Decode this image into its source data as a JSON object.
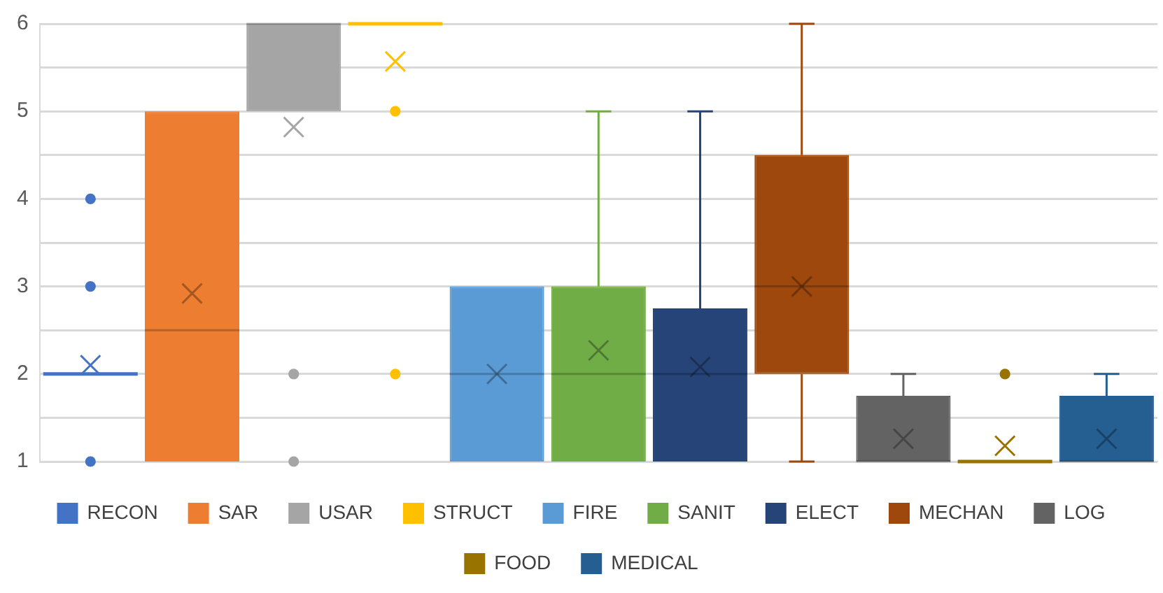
{
  "chart_data": {
    "type": "box",
    "categories": [
      null
    ],
    "ylim": [
      1,
      6
    ],
    "yticks": [
      1,
      {
        "value": 1.5,
        "label": null
      },
      2,
      {
        "value": 2.5,
        "label": null
      },
      3,
      {
        "value": 3.5,
        "label": null
      },
      4,
      {
        "value": 4.5,
        "label": null
      },
      5,
      {
        "value": 5.5,
        "label": null
      },
      6
    ],
    "grid": "y",
    "legend": "bottom",
    "tick_labels": "y",
    "series": [
      {
        "name": "RECON",
        "color": "#4472c4",
        "boxes": [
          {
            "low": 2,
            "q1": 2,
            "median": 2,
            "q3": 2,
            "high": 2,
            "mean": 2.1,
            "outliers": [
              1,
              3,
              4
            ]
          }
        ]
      },
      {
        "name": "SAR",
        "color": "#ed7d31",
        "boxes": [
          {
            "low": 1,
            "q1": 1,
            "median": 2.5,
            "q3": 5,
            "high": 5,
            "mean": 2.92
          }
        ]
      },
      {
        "name": "USAR",
        "color": "#a5a5a5",
        "boxes": [
          {
            "low": 5,
            "q1": 5,
            "median": 6,
            "q3": 6,
            "high": 6,
            "mean": 4.82,
            "outliers": [
              1,
              2
            ]
          }
        ]
      },
      {
        "name": "STRUCT",
        "color": "#ffc000",
        "boxes": [
          {
            "low": 6,
            "q1": 6,
            "median": 6,
            "q3": 6,
            "high": 6,
            "mean": 5.57,
            "outliers": [
              2,
              5
            ]
          }
        ]
      },
      {
        "name": "FIRE",
        "color": "#5b9bd5",
        "boxes": [
          {
            "low": 1,
            "q1": 1,
            "median": 2,
            "q3": 3,
            "high": 3,
            "mean": 2
          }
        ]
      },
      {
        "name": "SANIT",
        "color": "#70ad47",
        "boxes": [
          {
            "low": 1,
            "q1": 1,
            "median": 2,
            "q3": 3,
            "high": 5,
            "mean": 2.27
          }
        ]
      },
      {
        "name": "ELECT",
        "color": "#264478",
        "boxes": [
          {
            "low": 1,
            "q1": 1,
            "median": 2,
            "q3": 2.75,
            "high": 5,
            "mean": 2.08
          }
        ]
      },
      {
        "name": "MECHAN",
        "color": "#9e480e",
        "boxes": [
          {
            "low": 1,
            "q1": 2,
            "median": 3,
            "q3": 4.5,
            "high": 6,
            "mean": 3
          }
        ]
      },
      {
        "name": "LOG",
        "color": "#636363",
        "boxes": [
          {
            "low": 1,
            "q1": 1,
            "median": 1,
            "q3": 1.75,
            "high": 2,
            "mean": 1.26
          }
        ]
      },
      {
        "name": "FOOD",
        "color": "#997300",
        "boxes": [
          {
            "low": 1,
            "q1": 1,
            "median": 1,
            "q3": 1,
            "high": 1,
            "mean": 1.18,
            "outliers": [
              2
            ]
          }
        ]
      },
      {
        "name": "MEDICAL",
        "color": "#255e91",
        "boxes": [
          {
            "low": 1,
            "q1": 1,
            "median": 1,
            "q3": 1.75,
            "high": 2,
            "mean": 1.26
          }
        ]
      }
    ]
  }
}
